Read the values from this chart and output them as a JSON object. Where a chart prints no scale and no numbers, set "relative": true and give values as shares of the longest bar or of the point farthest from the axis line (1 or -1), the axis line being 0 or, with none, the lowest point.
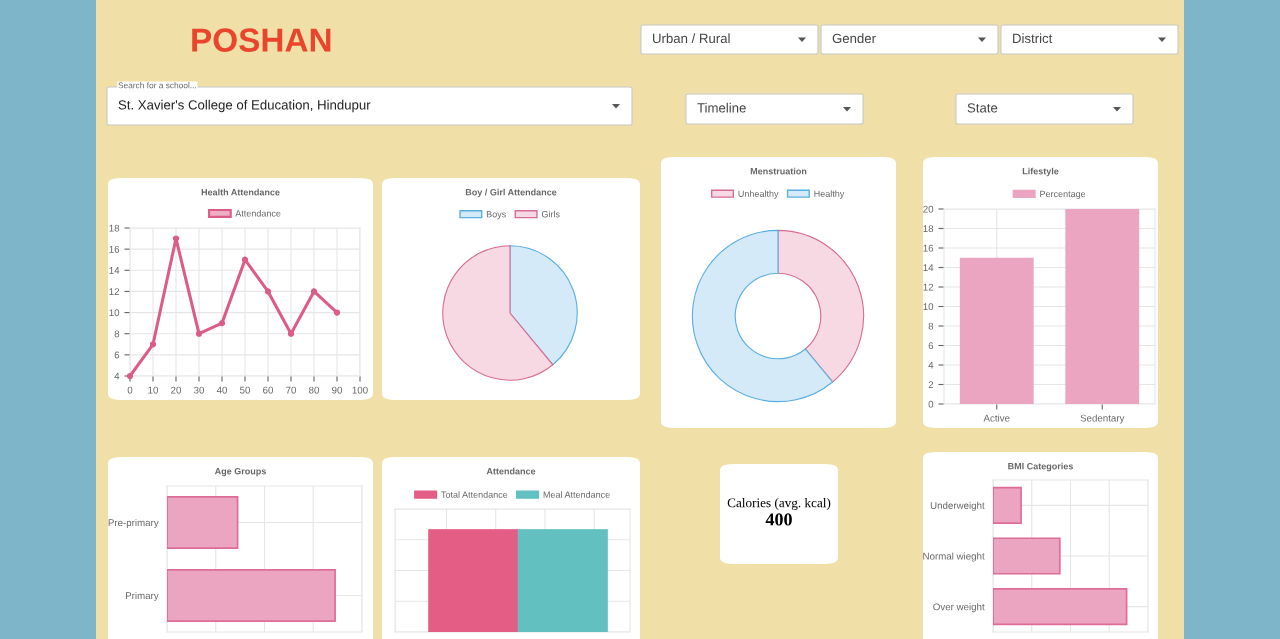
{
  "chart_data": [
    {
      "type": "other",
      "title": "POSHAN",
      "annotations": [
        "Urban / Rural",
        "Gender",
        "District",
        "Search for a school...",
        "St. Xavier's College of Education, Hindupur",
        "Timeline",
        "State"
      ]
    },
    {
      "type": "line",
      "title": "Health Attendance",
      "x": [
        0,
        10,
        20,
        30,
        40,
        50,
        60,
        70,
        80,
        90
      ],
      "series": [
        {
          "name": "Attendance",
          "color": "#dc5c88",
          "values": [
            4,
            7,
            17,
            8,
            9,
            15,
            12,
            8,
            12,
            10
          ]
        }
      ],
      "xlim": [
        0,
        100
      ],
      "xticks": [
        0,
        10,
        20,
        30,
        40,
        50,
        60,
        70,
        80,
        90,
        100
      ],
      "ylim": [
        4,
        18
      ],
      "yticks": [
        4,
        6,
        8,
        10,
        12,
        14,
        16,
        18
      ],
      "grid": true,
      "legend": "top",
      "marker": "circle"
    },
    {
      "type": "pie",
      "title": "Boy / Girl Attendance",
      "categories": [
        "Boys",
        "Girls"
      ],
      "values": [
        39,
        61
      ],
      "colors": [
        "#d4eaf8",
        "#f7d9e3"
      ],
      "legend": "top"
    },
    {
      "type": "donut",
      "title": "Menstruation",
      "categories": [
        "Unhealthy",
        "Healthy"
      ],
      "values": [
        39,
        61
      ],
      "colors": [
        "#f7d9e3",
        "#d4eaf8"
      ],
      "legend": "top"
    },
    {
      "type": "bar",
      "title": "Lifestyle",
      "categories": [
        "Active",
        "Sedentary"
      ],
      "series": [
        {
          "name": "Percentage",
          "color": "#eba5c0",
          "values": [
            15,
            20
          ]
        }
      ],
      "ylim": [
        0,
        20
      ],
      "yticks": [
        0,
        2,
        4,
        6,
        8,
        10,
        12,
        14,
        16,
        18,
        20
      ],
      "grid": true,
      "legend": "top"
    },
    {
      "type": "bar",
      "title": "Age Groups",
      "orientation": "horizontal",
      "relative": true,
      "categories": [
        "Pre-primary",
        "Primary"
      ],
      "values": [
        0.42,
        1
      ],
      "color": "#eba5c0",
      "grid": true,
      "tick_labels": "y"
    },
    {
      "type": "bar",
      "title": "Attendance",
      "relative": true,
      "categories": [
        null
      ],
      "series": [
        {
          "name": "Total Attendance",
          "color": "#e35d85",
          "values": [
            1
          ]
        },
        {
          "name": "Meal Attendance",
          "color": "#62c0c0",
          "values": [
            1
          ]
        }
      ],
      "grid": true,
      "legend": "top",
      "tick_labels": false
    },
    {
      "type": "other",
      "title": "Calories (avg. kcal)",
      "annotations": [
        "400"
      ]
    },
    {
      "type": "bar",
      "title": "BMI Categories",
      "orientation": "horizontal",
      "relative": true,
      "categories": [
        "Underweight",
        "Normal wieght",
        "Over weight"
      ],
      "values": [
        0.21,
        0.5,
        1
      ],
      "color": "#eba5c0",
      "grid": true,
      "tick_labels": "y"
    }
  ]
}
